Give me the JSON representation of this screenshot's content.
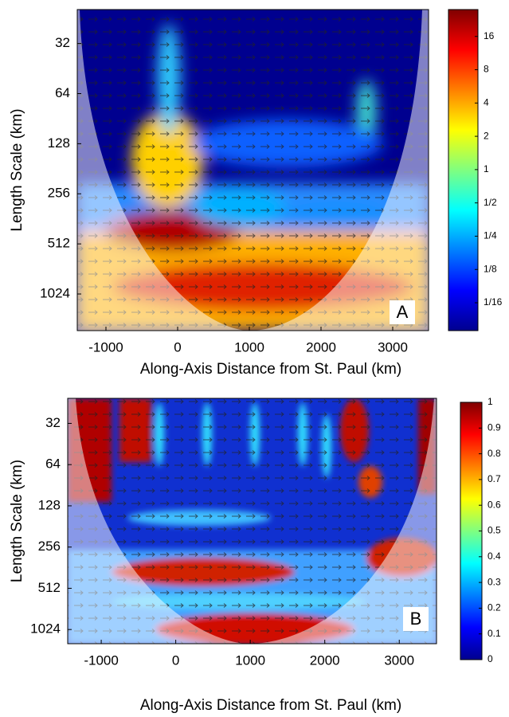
{
  "chart_data": [
    {
      "type": "wavelet",
      "panel_label": "A",
      "xlabel": "Along-Axis Distance from St. Paul (km)",
      "ylabel": "Length Scale (km)",
      "xlim": [
        -1400,
        3500
      ],
      "xticks": [
        -1000,
        0,
        1000,
        2000,
        3000
      ],
      "ylim": [
        20,
        1700
      ],
      "y_log_base": 2,
      "y_inverted": true,
      "yticks": [
        32,
        64,
        128,
        256,
        512,
        1024
      ],
      "clim": [
        0.035,
        28
      ],
      "c_log": true,
      "cticks": [
        {
          "value": 0.0625,
          "label": "1/16"
        },
        {
          "value": 0.125,
          "label": "1/8"
        },
        {
          "value": 0.25,
          "label": "1/4"
        },
        {
          "value": 0.5,
          "label": "1/2"
        },
        1,
        2,
        4,
        8,
        16
      ]
    },
    {
      "type": "wavelet",
      "panel_label": "B",
      "xlabel": "Along-Axis Distance from St. Paul (km)",
      "ylabel": "Length Scale (km)",
      "xlim": [
        -1450,
        3500
      ],
      "xticks": [
        -1000,
        0,
        1000,
        2000,
        3000
      ],
      "ylim": [
        21,
        1300
      ],
      "y_log_base": 2,
      "y_inverted": true,
      "yticks": [
        32,
        64,
        128,
        256,
        512,
        1024
      ],
      "clim": [
        0,
        1
      ],
      "c_log": false,
      "cticks": [
        0,
        0.1,
        0.2,
        0.3,
        0.4,
        0.5,
        0.6,
        0.7,
        0.8,
        0.9,
        1
      ]
    }
  ]
}
